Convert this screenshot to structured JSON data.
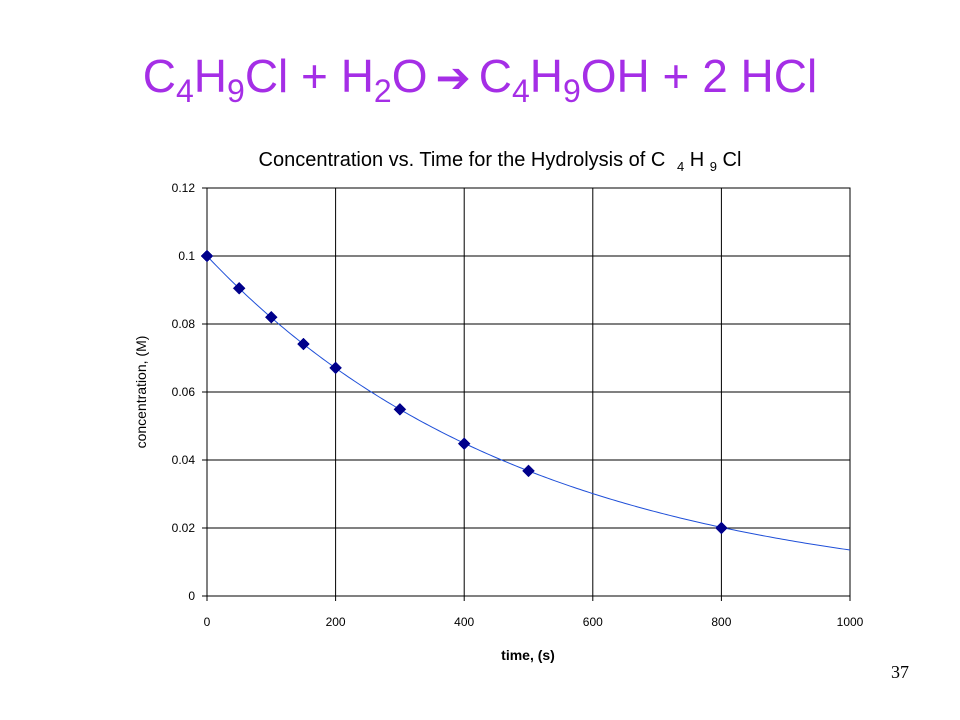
{
  "slide": {
    "title_parts": [
      "C",
      "4",
      "H",
      "9",
      "Cl + H",
      "2",
      "O",
      "➔",
      "C",
      "4",
      "H",
      "9",
      "OH + 2 HCl"
    ],
    "slide_number": "37",
    "title_color": "#a52ee6"
  },
  "chart_data": {
    "type": "scatter",
    "title_parts": [
      "Concentration vs. Time for the Hydrolysis of C",
      "4",
      "H",
      "9",
      "Cl"
    ],
    "xlabel": "time, (s)",
    "ylabel": "concentration, (M)",
    "xlim": [
      0,
      1000
    ],
    "ylim": [
      0,
      0.12
    ],
    "x_ticks": [
      "0",
      "200",
      "400",
      "600",
      "800",
      "1000"
    ],
    "y_ticks": [
      "0",
      "0.02",
      "0.04",
      "0.06",
      "0.08",
      "0.1",
      "0.12"
    ],
    "grid": true,
    "legend": "none",
    "series": [
      {
        "marker": "diamond",
        "color": "#00008b",
        "x": [
          0,
          50,
          100,
          150,
          200,
          300,
          400,
          500,
          800
        ],
        "y": [
          0.1,
          0.0905,
          0.082,
          0.0741,
          0.0671,
          0.0549,
          0.0448,
          0.0368,
          0.02
        ]
      }
    ],
    "trendline": {
      "type": "exponential",
      "color": "#1f4fd8",
      "a": 0.1,
      "k": 0.002
    }
  }
}
